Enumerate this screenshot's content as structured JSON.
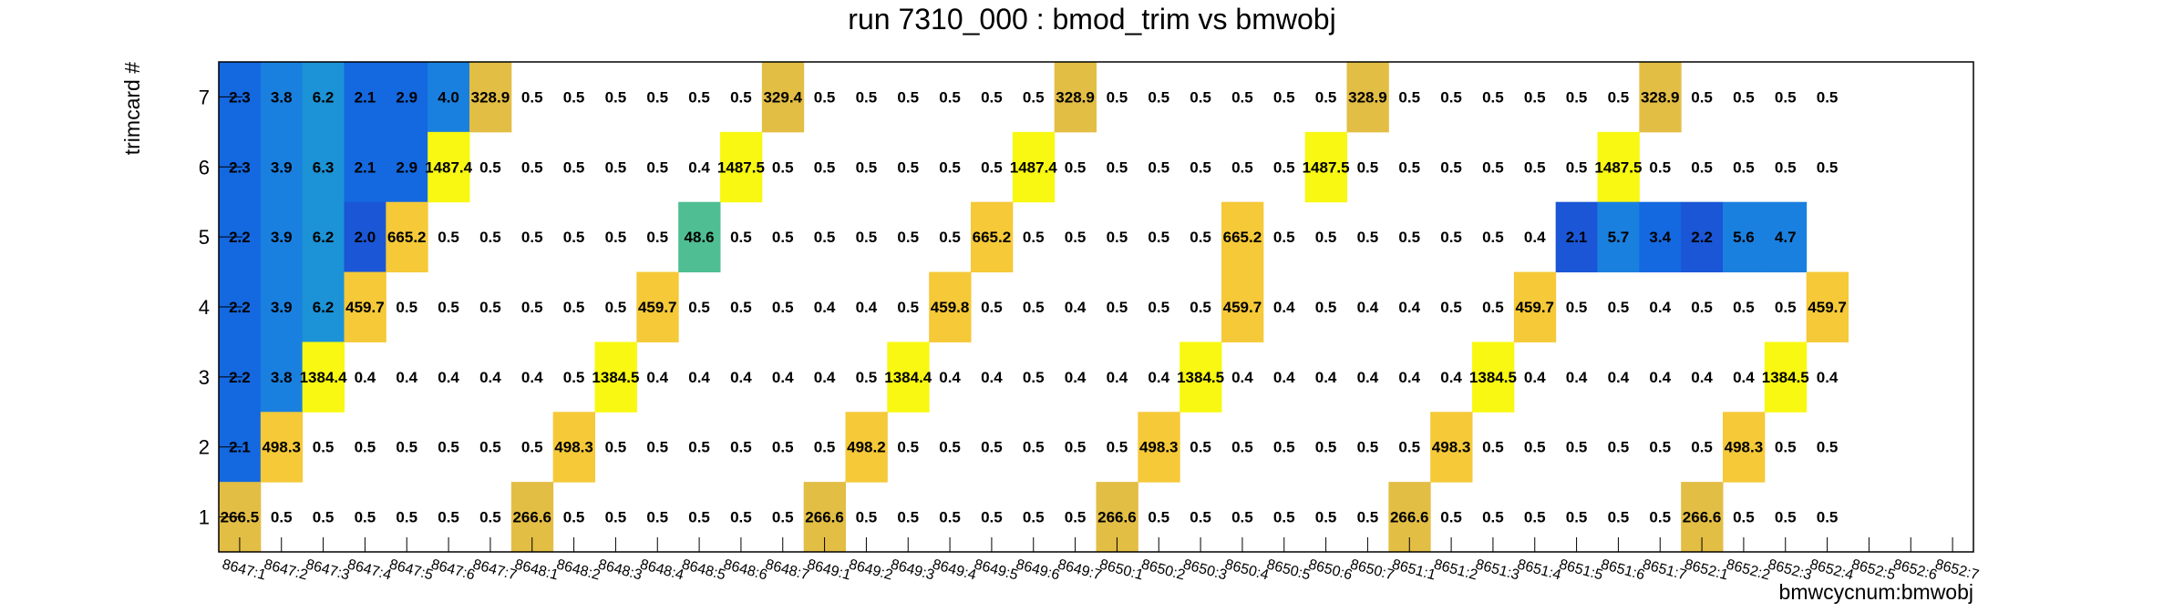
{
  "chart_data": {
    "type": "heatmap",
    "title": "run 7310_000 : bmod_trim vs bmwobj",
    "xlabel": "bmwcycnum:bmwobj",
    "ylabel": "trimcard #",
    "x_categories": [
      "8647:1",
      "8647:2",
      "8647:3",
      "8647:4",
      "8647:5",
      "8647:6",
      "8647:7",
      "8648:1",
      "8648:2",
      "8648:3",
      "8648:4",
      "8648:5",
      "8648:6",
      "8648:7",
      "8649:1",
      "8649:2",
      "8649:3",
      "8649:4",
      "8649:5",
      "8649:6",
      "8649:7",
      "8650:1",
      "8650:2",
      "8650:3",
      "8650:4",
      "8650:5",
      "8650:6",
      "8650:7",
      "8651:1",
      "8651:2",
      "8651:3",
      "8651:4",
      "8651:5",
      "8651:6",
      "8651:7",
      "8652:1",
      "8652:2",
      "8652:3",
      "8652:4",
      "8652:5",
      "8652:6",
      "8652:7"
    ],
    "y_categories": [
      "1",
      "2",
      "3",
      "4",
      "5",
      "6",
      "7"
    ],
    "rows": [
      {
        "y": "7",
        "values": [
          2.3,
          3.8,
          6.2,
          2.1,
          2.9,
          4.0,
          328.9,
          0.5,
          0.5,
          0.5,
          0.5,
          0.5,
          0.5,
          329.4,
          0.5,
          0.5,
          0.5,
          0.5,
          0.5,
          0.5,
          328.9,
          0.5,
          0.5,
          0.5,
          0.5,
          0.5,
          0.5,
          328.9,
          0.5,
          0.5,
          0.5,
          0.5,
          0.5,
          0.5,
          328.9,
          0.5,
          0.5,
          0.5,
          0.5,
          null,
          null,
          null
        ]
      },
      {
        "y": "6",
        "values": [
          2.3,
          3.9,
          6.3,
          2.1,
          2.9,
          1487.4,
          0.5,
          0.5,
          0.5,
          0.5,
          0.5,
          0.4,
          1487.5,
          0.5,
          0.5,
          0.5,
          0.5,
          0.5,
          0.5,
          1487.4,
          0.5,
          0.5,
          0.5,
          0.5,
          0.5,
          0.5,
          1487.5,
          0.5,
          0.5,
          0.5,
          0.5,
          0.5,
          0.5,
          1487.5,
          0.5,
          0.5,
          0.5,
          0.5,
          0.5,
          null,
          null,
          null
        ]
      },
      {
        "y": "5",
        "values": [
          2.2,
          3.9,
          6.2,
          2.0,
          665.2,
          0.5,
          0.5,
          0.5,
          0.5,
          0.5,
          0.5,
          48.6,
          0.5,
          0.5,
          0.5,
          0.5,
          0.5,
          0.5,
          665.2,
          0.5,
          0.5,
          0.5,
          0.5,
          0.5,
          665.2,
          0.5,
          0.5,
          0.5,
          0.5,
          0.5,
          0.5,
          0.4,
          2.1,
          5.7,
          3.4,
          2.2,
          5.6,
          4.7,
          null,
          null,
          null,
          null
        ]
      },
      {
        "y": "4",
        "values": [
          2.2,
          3.9,
          6.2,
          459.7,
          0.5,
          0.5,
          0.5,
          0.5,
          0.5,
          0.5,
          459.7,
          0.5,
          0.5,
          0.5,
          0.4,
          0.4,
          0.5,
          459.8,
          0.5,
          0.5,
          0.4,
          0.5,
          0.5,
          0.5,
          459.7,
          0.4,
          0.5,
          0.4,
          0.4,
          0.5,
          0.5,
          459.7,
          0.5,
          0.5,
          0.4,
          0.5,
          0.5,
          0.5,
          459.7,
          null,
          null,
          null
        ]
      },
      {
        "y": "3",
        "values": [
          2.2,
          3.8,
          1384.4,
          0.4,
          0.4,
          0.4,
          0.4,
          0.4,
          0.5,
          1384.5,
          0.4,
          0.4,
          0.4,
          0.4,
          0.4,
          0.5,
          1384.4,
          0.4,
          0.4,
          0.5,
          0.4,
          0.4,
          0.4,
          1384.5,
          0.4,
          0.4,
          0.4,
          0.4,
          0.4,
          0.4,
          1384.5,
          0.4,
          0.4,
          0.4,
          0.4,
          0.4,
          0.4,
          1384.5,
          0.4,
          null,
          null,
          null
        ]
      },
      {
        "y": "2",
        "values": [
          2.1,
          498.3,
          0.5,
          0.5,
          0.5,
          0.5,
          0.5,
          0.5,
          498.3,
          0.5,
          0.5,
          0.5,
          0.5,
          0.5,
          0.5,
          498.2,
          0.5,
          0.5,
          0.5,
          0.5,
          0.5,
          0.5,
          498.3,
          0.5,
          0.5,
          0.5,
          0.5,
          0.5,
          0.5,
          498.3,
          0.5,
          0.5,
          0.5,
          0.5,
          0.5,
          0.5,
          498.3,
          0.5,
          0.5,
          null,
          null,
          null
        ]
      },
      {
        "y": "1",
        "values": [
          266.5,
          0.5,
          0.5,
          0.5,
          0.5,
          0.5,
          0.5,
          266.6,
          0.5,
          0.5,
          0.5,
          0.5,
          0.5,
          0.5,
          266.6,
          0.5,
          0.5,
          0.5,
          0.5,
          0.5,
          0.5,
          266.6,
          0.5,
          0.5,
          0.5,
          0.5,
          0.5,
          0.5,
          266.6,
          0.5,
          0.5,
          0.5,
          0.5,
          0.5,
          0.5,
          266.6,
          0.5,
          0.5,
          0.5,
          null,
          null,
          null
        ]
      }
    ],
    "colors": {
      "dark_blue": "#1a56d6",
      "blue": "#1468e0",
      "mid_blue": "#1a80e0",
      "cyan": "#1b93d6",
      "green": "#4fbf93",
      "gold": "#e3be45",
      "orange_yellow": "#f5c938",
      "yellow": "#f8f813"
    },
    "value_colors": {
      "2.0": "dark_blue",
      "2.1": "blue",
      "2.2": "blue",
      "2.3": "blue",
      "2.9": "blue",
      "3.4": "blue",
      "3.8": "mid_blue",
      "3.9": "mid_blue",
      "4.0": "mid_blue",
      "4.7": "mid_blue",
      "5.6": "mid_blue",
      "5.7": "mid_blue",
      "6.2": "cyan",
      "6.3": "cyan",
      "48.6": "green",
      "266.5": "gold",
      "266.6": "gold",
      "328.9": "gold",
      "329.4": "gold",
      "459.7": "orange_yellow",
      "459.8": "orange_yellow",
      "498.2": "orange_yellow",
      "498.3": "orange_yellow",
      "665.2": "orange_yellow",
      "1384.4": "yellow",
      "1384.5": "yellow",
      "1487.4": "yellow",
      "1487.5": "yellow"
    },
    "color_overrides": {
      "5:32": "dark_blue",
      "5:35": "dark_blue"
    },
    "grid": false,
    "legend": "none"
  }
}
